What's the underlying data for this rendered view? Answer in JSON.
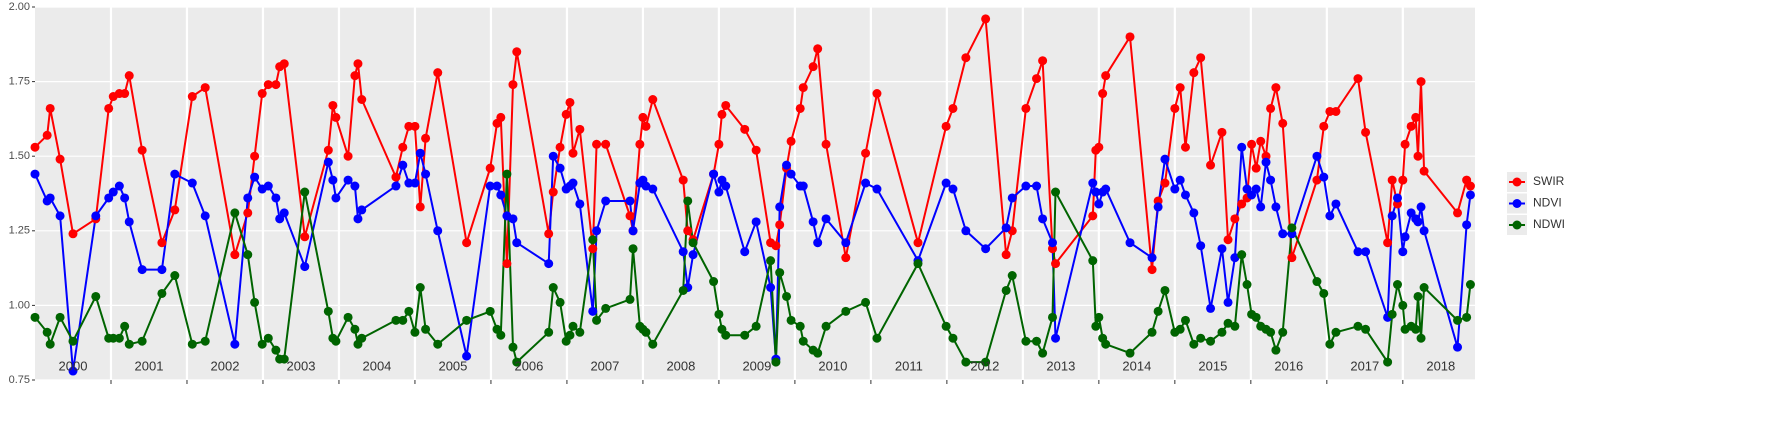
{
  "chart_data": {
    "type": "line",
    "x": [
      2000.0,
      2000.16,
      2000.2,
      2000.33,
      2000.5,
      2000.8,
      2000.97,
      2001.03,
      2001.11,
      2001.18,
      2001.24,
      2001.41,
      2001.67,
      2001.84,
      2002.07,
      2002.24,
      2002.63,
      2002.8,
      2002.89,
      2002.99,
      2003.07,
      2003.17,
      2003.22,
      2003.28,
      2003.55,
      2003.86,
      2003.92,
      2003.96,
      2004.12,
      2004.21,
      2004.25,
      2004.3,
      2004.75,
      2004.84,
      2004.92,
      2005.0,
      2005.07,
      2005.14,
      2005.3,
      2005.68,
      2005.99,
      2006.08,
      2006.13,
      2006.21,
      2006.29,
      2006.34,
      2006.76,
      2006.82,
      2006.91,
      2006.99,
      2007.04,
      2007.08,
      2007.17,
      2007.34,
      2007.39,
      2007.51,
      2007.83,
      2007.87,
      2007.96,
      2008.0,
      2008.04,
      2008.13,
      2008.53,
      2008.59,
      2008.66,
      2008.93,
      2009.0,
      2009.04,
      2009.09,
      2009.34,
      2009.49,
      2009.68,
      2009.75,
      2009.8,
      2009.89,
      2009.95,
      2010.07,
      2010.11,
      2010.24,
      2010.3,
      2010.41,
      2010.67,
      2010.93,
      2011.08,
      2011.62,
      2011.99,
      2012.08,
      2012.25,
      2012.51,
      2012.78,
      2012.86,
      2013.04,
      2013.18,
      2013.26,
      2013.39,
      2013.43,
      2013.92,
      2013.96,
      2014.0,
      2014.05,
      2014.09,
      2014.41,
      2014.7,
      2014.78,
      2014.87,
      2015.0,
      2015.07,
      2015.14,
      2015.25,
      2015.34,
      2015.47,
      2015.62,
      2015.7,
      2015.79,
      2015.88,
      2015.95,
      2016.01,
      2016.07,
      2016.13,
      2016.2,
      2016.26,
      2016.33,
      2016.42,
      2016.54,
      2016.87,
      2016.96,
      2017.04,
      2017.12,
      2017.41,
      2017.51,
      2017.8,
      2017.86,
      2017.93,
      2018.0,
      2018.03,
      2018.11,
      2018.17,
      2018.2,
      2018.24,
      2018.28,
      2018.72,
      2018.84,
      2018.89
    ],
    "series": [
      {
        "name": "SWIR",
        "color": "#ff0000",
        "values": [
          1.53,
          1.57,
          1.66,
          1.49,
          1.24,
          1.29,
          1.66,
          1.7,
          1.71,
          1.71,
          1.77,
          1.52,
          1.21,
          1.32,
          1.7,
          1.73,
          1.17,
          1.31,
          1.5,
          1.71,
          1.74,
          1.74,
          1.8,
          1.81,
          1.23,
          1.52,
          1.67,
          1.63,
          1.5,
          1.77,
          1.81,
          1.69,
          1.43,
          1.53,
          1.6,
          1.6,
          1.33,
          1.56,
          1.78,
          1.21,
          1.46,
          1.61,
          1.63,
          1.14,
          1.74,
          1.85,
          1.24,
          1.38,
          1.53,
          1.64,
          1.68,
          1.51,
          1.59,
          1.19,
          1.54,
          1.54,
          1.3,
          1.25,
          1.54,
          1.63,
          1.6,
          1.69,
          1.42,
          1.25,
          1.22,
          1.44,
          1.54,
          1.64,
          1.67,
          1.59,
          1.52,
          1.21,
          1.2,
          1.27,
          1.46,
          1.55,
          1.66,
          1.73,
          1.8,
          1.86,
          1.54,
          1.16,
          1.51,
          1.71,
          1.21,
          1.6,
          1.66,
          1.83,
          1.96,
          1.17,
          1.25,
          1.66,
          1.76,
          1.82,
          1.19,
          1.14,
          1.3,
          1.52,
          1.53,
          1.71,
          1.77,
          1.9,
          1.12,
          1.35,
          1.41,
          1.66,
          1.73,
          1.53,
          1.78,
          1.83,
          1.47,
          1.58,
          1.22,
          1.29,
          1.34,
          1.36,
          1.54,
          1.46,
          1.55,
          1.5,
          1.66,
          1.73,
          1.61,
          1.16,
          1.42,
          1.6,
          1.65,
          1.65,
          1.76,
          1.58,
          1.21,
          1.42,
          1.34,
          1.42,
          1.54,
          1.6,
          1.63,
          1.5,
          1.75,
          1.45,
          1.31,
          1.42,
          1.4
        ]
      },
      {
        "name": "NDVI",
        "color": "#0000ff",
        "values": [
          1.44,
          1.35,
          1.36,
          1.3,
          0.78,
          1.3,
          1.36,
          1.38,
          1.4,
          1.36,
          1.28,
          1.12,
          1.12,
          1.44,
          1.41,
          1.3,
          0.87,
          1.36,
          1.43,
          1.39,
          1.4,
          1.36,
          1.29,
          1.31,
          1.13,
          1.48,
          1.42,
          1.36,
          1.42,
          1.4,
          1.29,
          1.32,
          1.4,
          1.47,
          1.41,
          1.41,
          1.51,
          1.44,
          1.25,
          0.83,
          1.4,
          1.4,
          1.37,
          1.3,
          1.29,
          1.21,
          1.14,
          1.5,
          1.46,
          1.39,
          1.4,
          1.41,
          1.34,
          0.98,
          1.25,
          1.35,
          1.35,
          1.25,
          1.41,
          1.42,
          1.4,
          1.39,
          1.18,
          1.06,
          1.17,
          1.44,
          1.38,
          1.42,
          1.4,
          1.18,
          1.28,
          1.06,
          0.82,
          1.33,
          1.47,
          1.44,
          1.4,
          1.4,
          1.28,
          1.21,
          1.29,
          1.21,
          1.41,
          1.39,
          1.15,
          1.41,
          1.39,
          1.25,
          1.19,
          1.26,
          1.36,
          1.4,
          1.4,
          1.29,
          1.21,
          0.89,
          1.41,
          1.38,
          1.34,
          1.38,
          1.39,
          1.21,
          1.16,
          1.33,
          1.49,
          1.39,
          1.42,
          1.37,
          1.31,
          1.2,
          0.99,
          1.19,
          1.01,
          1.16,
          1.53,
          1.39,
          1.37,
          1.39,
          1.33,
          1.48,
          1.42,
          1.33,
          1.24,
          1.24,
          1.5,
          1.43,
          1.3,
          1.34,
          1.18,
          1.18,
          0.96,
          1.3,
          1.36,
          1.18,
          1.23,
          1.31,
          1.29,
          1.28,
          1.33,
          1.25,
          0.86,
          1.27,
          1.37
        ]
      },
      {
        "name": "NDWI",
        "color": "#006400",
        "values": [
          0.96,
          0.91,
          0.87,
          0.96,
          0.88,
          1.03,
          0.89,
          0.89,
          0.89,
          0.93,
          0.87,
          0.88,
          1.04,
          1.1,
          0.87,
          0.88,
          1.31,
          1.17,
          1.01,
          0.87,
          0.89,
          0.85,
          0.82,
          0.82,
          1.38,
          0.98,
          0.89,
          0.88,
          0.96,
          0.92,
          0.87,
          0.89,
          0.95,
          0.95,
          0.98,
          0.91,
          1.06,
          0.92,
          0.87,
          0.95,
          0.98,
          0.92,
          0.9,
          1.44,
          0.86,
          0.81,
          0.91,
          1.06,
          1.01,
          0.88,
          0.9,
          0.93,
          0.91,
          1.22,
          0.95,
          0.99,
          1.02,
          1.19,
          0.93,
          0.92,
          0.91,
          0.87,
          1.05,
          1.35,
          1.21,
          1.08,
          0.97,
          0.92,
          0.9,
          0.9,
          0.93,
          1.15,
          0.81,
          1.11,
          1.03,
          0.95,
          0.93,
          0.88,
          0.85,
          0.84,
          0.93,
          0.98,
          1.01,
          0.89,
          1.14,
          0.93,
          0.89,
          0.81,
          0.81,
          1.05,
          1.1,
          0.88,
          0.88,
          0.84,
          0.96,
          1.38,
          1.15,
          0.93,
          0.96,
          0.89,
          0.87,
          0.84,
          0.91,
          0.98,
          1.05,
          0.91,
          0.92,
          0.95,
          0.87,
          0.89,
          0.88,
          0.91,
          0.94,
          0.93,
          1.17,
          1.07,
          0.97,
          0.96,
          0.93,
          0.92,
          0.91,
          0.85,
          0.91,
          1.26,
          1.08,
          1.04,
          0.87,
          0.91,
          0.93,
          0.92,
          0.81,
          0.97,
          1.07,
          1.0,
          0.92,
          0.93,
          0.92,
          1.03,
          0.89,
          1.06,
          0.95,
          0.96,
          1.07
        ]
      }
    ],
    "xlim": [
      2000,
      2018.95
    ],
    "ylim": [
      0.75,
      2.0
    ],
    "yticks": [
      0.75,
      {
        "value": 1.0,
        "label": "1.00"
      },
      1.25,
      {
        "value": 1.5,
        "label": "1.50"
      },
      1.75,
      {
        "value": 2.0,
        "label": "2.00"
      }
    ],
    "xgrid": [
      2001,
      2002,
      2003,
      2004,
      2005,
      2006,
      2007,
      2008,
      2009,
      2010,
      2011,
      2012,
      2013,
      2014,
      2015,
      2016,
      2017,
      2018
    ],
    "xticks": [
      {
        "value": 2000.5,
        "label": "2000"
      },
      {
        "value": 2001.5,
        "label": "2001"
      },
      {
        "value": 2002.5,
        "label": "2002"
      },
      {
        "value": 2003.5,
        "label": "2003"
      },
      {
        "value": 2004.5,
        "label": "2004"
      },
      {
        "value": 2005.5,
        "label": "2005"
      },
      {
        "value": 2006.5,
        "label": "2006"
      },
      {
        "value": 2007.5,
        "label": "2007"
      },
      {
        "value": 2008.5,
        "label": "2008"
      },
      {
        "value": 2009.5,
        "label": "2009"
      },
      {
        "value": 2010.5,
        "label": "2010"
      },
      {
        "value": 2011.5,
        "label": "2011"
      },
      {
        "value": 2012.5,
        "label": "2012"
      },
      {
        "value": 2013.5,
        "label": "2013"
      },
      {
        "value": 2014.5,
        "label": "2014"
      },
      {
        "value": 2015.5,
        "label": "2015"
      },
      {
        "value": 2016.5,
        "label": "2016"
      },
      {
        "value": 2017.5,
        "label": "2017"
      },
      {
        "value": 2018.5,
        "label": "2018"
      }
    ],
    "grid": true,
    "legend": "right"
  }
}
